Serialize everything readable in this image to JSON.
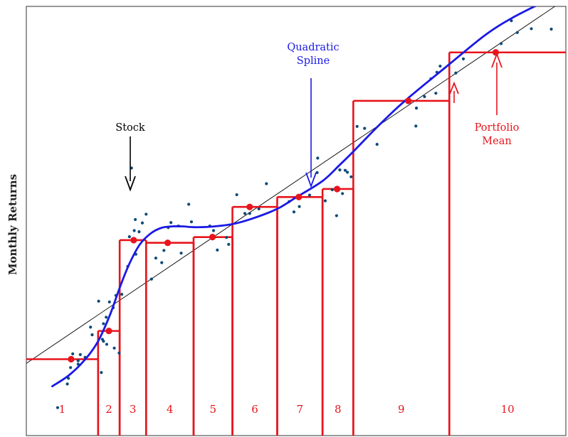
{
  "chart_data": {
    "type": "scatter",
    "title": "",
    "xlabel": "",
    "ylabel": "Monthly Returns",
    "grid": false,
    "axis_ranges": {
      "x": [
        0,
        100
      ],
      "y": [
        0,
        100
      ]
    },
    "colors": {
      "stock": "#0c4a78",
      "spline": "#1a1ae6",
      "portfolio": "#e8141c",
      "regression": "#000000"
    },
    "portfolios": [
      {
        "label": "1",
        "x_range": [
          0,
          13.3
        ],
        "mean_x": 8.3,
        "mean_y": 17.6
      },
      {
        "label": "2",
        "x_range": [
          13.3,
          17.3
        ],
        "mean_x": 15.3,
        "mean_y": 25.0
      },
      {
        "label": "3",
        "x_range": [
          17.3,
          22.2
        ],
        "mean_x": 19.9,
        "mean_y": 48.8
      },
      {
        "label": "4",
        "x_range": [
          22.2,
          31.0
        ],
        "mean_x": 26.2,
        "mean_y": 48.1
      },
      {
        "label": "5",
        "x_range": [
          31.0,
          38.2
        ],
        "mean_x": 34.5,
        "mean_y": 49.6
      },
      {
        "label": "6",
        "x_range": [
          38.2,
          46.5
        ],
        "mean_x": 41.4,
        "mean_y": 57.5
      },
      {
        "label": "7",
        "x_range": [
          46.5,
          54.9
        ],
        "mean_x": 50.5,
        "mean_y": 60.1
      },
      {
        "label": "8",
        "x_range": [
          54.9,
          60.6
        ],
        "mean_x": 57.6,
        "mean_y": 62.2
      },
      {
        "label": "9",
        "x_range": [
          60.6,
          78.4
        ],
        "mean_x": 70.8,
        "mean_y": 85.3
      },
      {
        "label": "10",
        "x_range": [
          78.4,
          100
        ],
        "mean_x": 87.0,
        "mean_y": 98.0
      }
    ],
    "regression_line": {
      "x": [
        0,
        100
      ],
      "y": [
        16.5,
        112.0
      ]
    },
    "spline": {
      "x": [
        4.8,
        8,
        11,
        13.3,
        15.5,
        17.3,
        19,
        21,
        23,
        25,
        27,
        29,
        31,
        34,
        38.2,
        42,
        46.5,
        50,
        54.9,
        58,
        60.6,
        65,
        70,
        78.4,
        85,
        90,
        96,
        100
      ],
      "y": [
        10.5,
        13.5,
        17.7,
        22.3,
        29.2,
        36.3,
        42.3,
        47.6,
        50.5,
        52.0,
        52.4,
        52.4,
        52.2,
        52.3,
        53.0,
        54.5,
        57.0,
        60.0,
        64.3,
        68.4,
        72.0,
        78.4,
        85.1,
        94.9,
        102.5,
        107.0,
        111.3,
        114.0
      ]
    },
    "stocks": [
      {
        "x": 5.8,
        "y": 4.9
      },
      {
        "x": 7.6,
        "y": 11.1
      },
      {
        "x": 7.8,
        "y": 12.6
      },
      {
        "x": 8.2,
        "y": 15.4
      },
      {
        "x": 8.6,
        "y": 19.0
      },
      {
        "x": 9.6,
        "y": 17.2
      },
      {
        "x": 10.0,
        "y": 18.8
      },
      {
        "x": 9.6,
        "y": 16.3
      },
      {
        "x": 10.9,
        "y": 18.1
      },
      {
        "x": 11.9,
        "y": 26.0
      },
      {
        "x": 12.2,
        "y": 24.0
      },
      {
        "x": 13.4,
        "y": 32.8
      },
      {
        "x": 13.9,
        "y": 14.1
      },
      {
        "x": 14.1,
        "y": 22.8
      },
      {
        "x": 14.3,
        "y": 26.9
      },
      {
        "x": 14.3,
        "y": 22.3
      },
      {
        "x": 14.8,
        "y": 28.6
      },
      {
        "x": 14.9,
        "y": 21.5
      },
      {
        "x": 15.4,
        "y": 32.6
      },
      {
        "x": 16.1,
        "y": 31.1
      },
      {
        "x": 16.6,
        "y": 34.3
      },
      {
        "x": 16.3,
        "y": 20.5
      },
      {
        "x": 17.2,
        "y": 19.2
      },
      {
        "x": 17.7,
        "y": 34.6
      },
      {
        "x": 18.8,
        "y": 41.9
      },
      {
        "x": 19.1,
        "y": 49.7
      },
      {
        "x": 19.5,
        "y": 67.7
      },
      {
        "x": 20.0,
        "y": 51.3
      },
      {
        "x": 20.2,
        "y": 54.2
      },
      {
        "x": 20.3,
        "y": 45.1
      },
      {
        "x": 20.9,
        "y": 51.0
      },
      {
        "x": 21.5,
        "y": 53.3
      },
      {
        "x": 22.2,
        "y": 55.6
      },
      {
        "x": 23.2,
        "y": 38.6
      },
      {
        "x": 24.0,
        "y": 44.1
      },
      {
        "x": 25.1,
        "y": 42.9
      },
      {
        "x": 25.5,
        "y": 46.1
      },
      {
        "x": 26.3,
        "y": 52.1
      },
      {
        "x": 26.8,
        "y": 53.4
      },
      {
        "x": 28.2,
        "y": 52.5
      },
      {
        "x": 28.7,
        "y": 45.4
      },
      {
        "x": 30.1,
        "y": 58.2
      },
      {
        "x": 30.6,
        "y": 53.6
      },
      {
        "x": 34.0,
        "y": 52.5
      },
      {
        "x": 34.7,
        "y": 51.3
      },
      {
        "x": 35.4,
        "y": 46.2
      },
      {
        "x": 37.1,
        "y": 49.5
      },
      {
        "x": 37.5,
        "y": 47.7
      },
      {
        "x": 39.0,
        "y": 60.7
      },
      {
        "x": 40.5,
        "y": 55.8
      },
      {
        "x": 41.4,
        "y": 55.8
      },
      {
        "x": 43.1,
        "y": 57.0
      },
      {
        "x": 44.5,
        "y": 63.6
      },
      {
        "x": 48.7,
        "y": 58.9
      },
      {
        "x": 49.6,
        "y": 56.2
      },
      {
        "x": 50.6,
        "y": 57.6
      },
      {
        "x": 52.5,
        "y": 60.6
      },
      {
        "x": 53.9,
        "y": 66.5
      },
      {
        "x": 54.0,
        "y": 70.3
      },
      {
        "x": 55.4,
        "y": 59.1
      },
      {
        "x": 56.7,
        "y": 62.0
      },
      {
        "x": 57.5,
        "y": 55.2
      },
      {
        "x": 58.1,
        "y": 67.2
      },
      {
        "x": 58.6,
        "y": 61.0
      },
      {
        "x": 59.1,
        "y": 67.1
      },
      {
        "x": 59.5,
        "y": 66.6
      },
      {
        "x": 60.2,
        "y": 65.4
      },
      {
        "x": 61.3,
        "y": 78.6
      },
      {
        "x": 62.7,
        "y": 78.1
      },
      {
        "x": 65.0,
        "y": 73.9
      },
      {
        "x": 72.2,
        "y": 78.7
      },
      {
        "x": 72.3,
        "y": 83.4
      },
      {
        "x": 73.8,
        "y": 86.4
      },
      {
        "x": 75.0,
        "y": 91.1
      },
      {
        "x": 75.9,
        "y": 87.3
      },
      {
        "x": 76.1,
        "y": 92.8
      },
      {
        "x": 76.7,
        "y": 94.4
      },
      {
        "x": 79.6,
        "y": 92.6
      },
      {
        "x": 81.0,
        "y": 96.3
      },
      {
        "x": 88.0,
        "y": 100.3
      },
      {
        "x": 89.9,
        "y": 106.3
      },
      {
        "x": 91.0,
        "y": 103.2
      },
      {
        "x": 93.6,
        "y": 104.2
      },
      {
        "x": 97.3,
        "y": 104.1
      }
    ],
    "annotations": {
      "stock": "Stock",
      "spline_line1": "Quadratic",
      "spline_line2": "Spline",
      "portfolio_line1": "Portfolio",
      "portfolio_line2": "Mean"
    }
  }
}
